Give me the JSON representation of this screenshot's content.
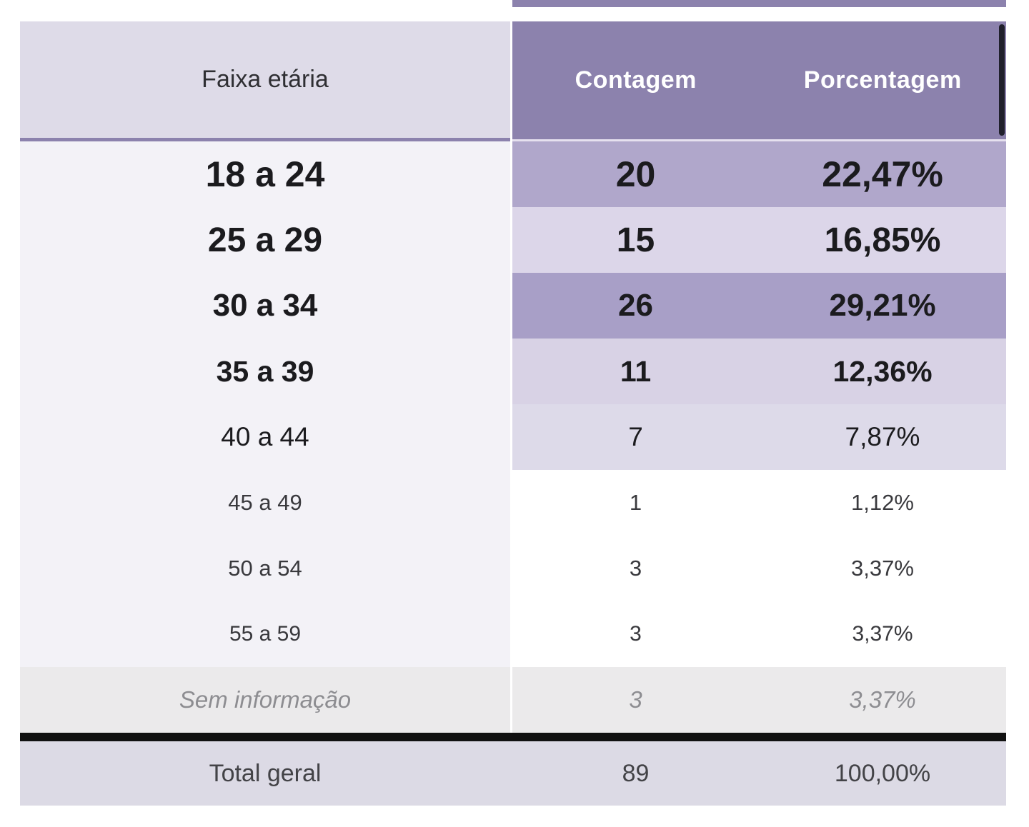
{
  "colors": {
    "header_right_bg": "#8c82ad",
    "header_left_bg": "#dedbe8",
    "top_strip": "#8c82ad",
    "left_row_bg": "#f3f2f7",
    "muted_row_bg": "#ebeaeb",
    "total_row_bg": "#dcdae5",
    "divider_purple": "#8c82ad",
    "divider_black": "#111111",
    "scrollbar": "#20202c",
    "value_scale_dark": "#a89fc7",
    "value_scale_light": "#ffffff"
  },
  "table": {
    "columns": [
      {
        "label": "Faixa etária"
      },
      {
        "label": "Contagem"
      },
      {
        "label": "Porcentagem"
      }
    ],
    "rows": [
      {
        "label": "18 a 24",
        "count": "20",
        "pct": "22,47%",
        "cls": "r1",
        "left_bg": "#f3f2f7",
        "right_bg": "#b0a7cb"
      },
      {
        "label": "25 a 29",
        "count": "15",
        "pct": "16,85%",
        "cls": "r2",
        "left_bg": "#f3f2f7",
        "right_bg": "#dcd6e9"
      },
      {
        "label": "30 a 34",
        "count": "26",
        "pct": "29,21%",
        "cls": "r3",
        "left_bg": "#f3f2f7",
        "right_bg": "#a89fc7"
      },
      {
        "label": "35 a 39",
        "count": "11",
        "pct": "12,36%",
        "cls": "r4",
        "left_bg": "#f3f2f7",
        "right_bg": "#d8d2e5"
      },
      {
        "label": "40 a 44",
        "count": "7",
        "pct": "7,87%",
        "cls": "r5",
        "left_bg": "#f3f2f7",
        "right_bg": "#dddae9"
      },
      {
        "label": "45 a 49",
        "count": "1",
        "pct": "1,12%",
        "cls": "r6",
        "left_bg": "#f3f2f7",
        "right_bg": "#ffffff"
      },
      {
        "label": "50 a 54",
        "count": "3",
        "pct": "3,37%",
        "cls": "r7",
        "left_bg": "#f3f2f7",
        "right_bg": "#ffffff"
      },
      {
        "label": "55 a 59",
        "count": "3",
        "pct": "3,37%",
        "cls": "r8",
        "left_bg": "#f3f2f7",
        "right_bg": "#ffffff"
      },
      {
        "label": "Sem informação",
        "count": "3",
        "pct": "3,37%",
        "cls": "r9",
        "left_bg": "#ebeaeb",
        "right_bg": "#ebeaeb"
      }
    ],
    "total": {
      "label": "Total geral",
      "count": "89",
      "pct": "100,00%"
    }
  },
  "chart_data": {
    "type": "table",
    "columns": [
      "Faixa etária",
      "Contagem",
      "Porcentagem"
    ],
    "rows": [
      [
        "18 a 24",
        20,
        22.47
      ],
      [
        "25 a 29",
        15,
        16.85
      ],
      [
        "30 a 34",
        26,
        29.21
      ],
      [
        "35 a 39",
        11,
        12.36
      ],
      [
        "40 a 44",
        7,
        7.87
      ],
      [
        "45 a 49",
        1,
        1.12
      ],
      [
        "50 a 54",
        3,
        3.37
      ],
      [
        "55 a 59",
        3,
        3.37
      ],
      [
        "Sem informação",
        3,
        3.37
      ]
    ],
    "total": [
      "Total geral",
      89,
      100.0
    ],
    "layout_hints": {
      "shading": "row background and font size scale with Contagem value",
      "percent_format": "pt-BR comma decimals",
      "grid": "off"
    }
  }
}
